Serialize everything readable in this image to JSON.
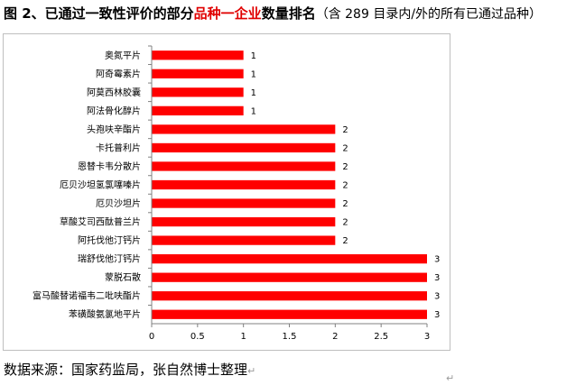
{
  "title": {
    "prefix": "图 2、已通过一致性评价的部分",
    "highlight": "品种一企业",
    "suffix": "数量排名",
    "note": "（含 289 目录内/外的所有已通过品种）"
  },
  "source_note": "数据来源：国家药监局，张自然博士整理",
  "colors": {
    "bar": "#ff0000",
    "highlight_text": "#e00000",
    "axis": "#808080"
  },
  "chart_data": {
    "type": "bar",
    "orientation": "horizontal",
    "categories": [
      "奥氮平片",
      "阿奇霉素片",
      "阿莫西林胶囊",
      "阿法骨化醇片",
      "头孢呋辛酯片",
      "卡托普利片",
      "恩替卡韦分散片",
      "厄贝沙坦氢氯噻嗪片",
      "厄贝沙坦片",
      "草酸艾司西酞普兰片",
      "阿托伐他汀钙片",
      "瑞舒伐他汀钙片",
      "蒙脱石散",
      "富马酸替诺福韦二吡呋酯片",
      "苯磺酸氨氯地平片"
    ],
    "values": [
      1,
      1,
      1,
      1,
      2,
      2,
      2,
      2,
      2,
      2,
      2,
      3,
      3,
      3,
      3
    ],
    "xticks": [
      "0",
      "0.5",
      "1",
      "1.5",
      "2",
      "2.5",
      "3"
    ],
    "xlim": [
      0,
      3
    ],
    "grid": false,
    "legend": "none"
  }
}
